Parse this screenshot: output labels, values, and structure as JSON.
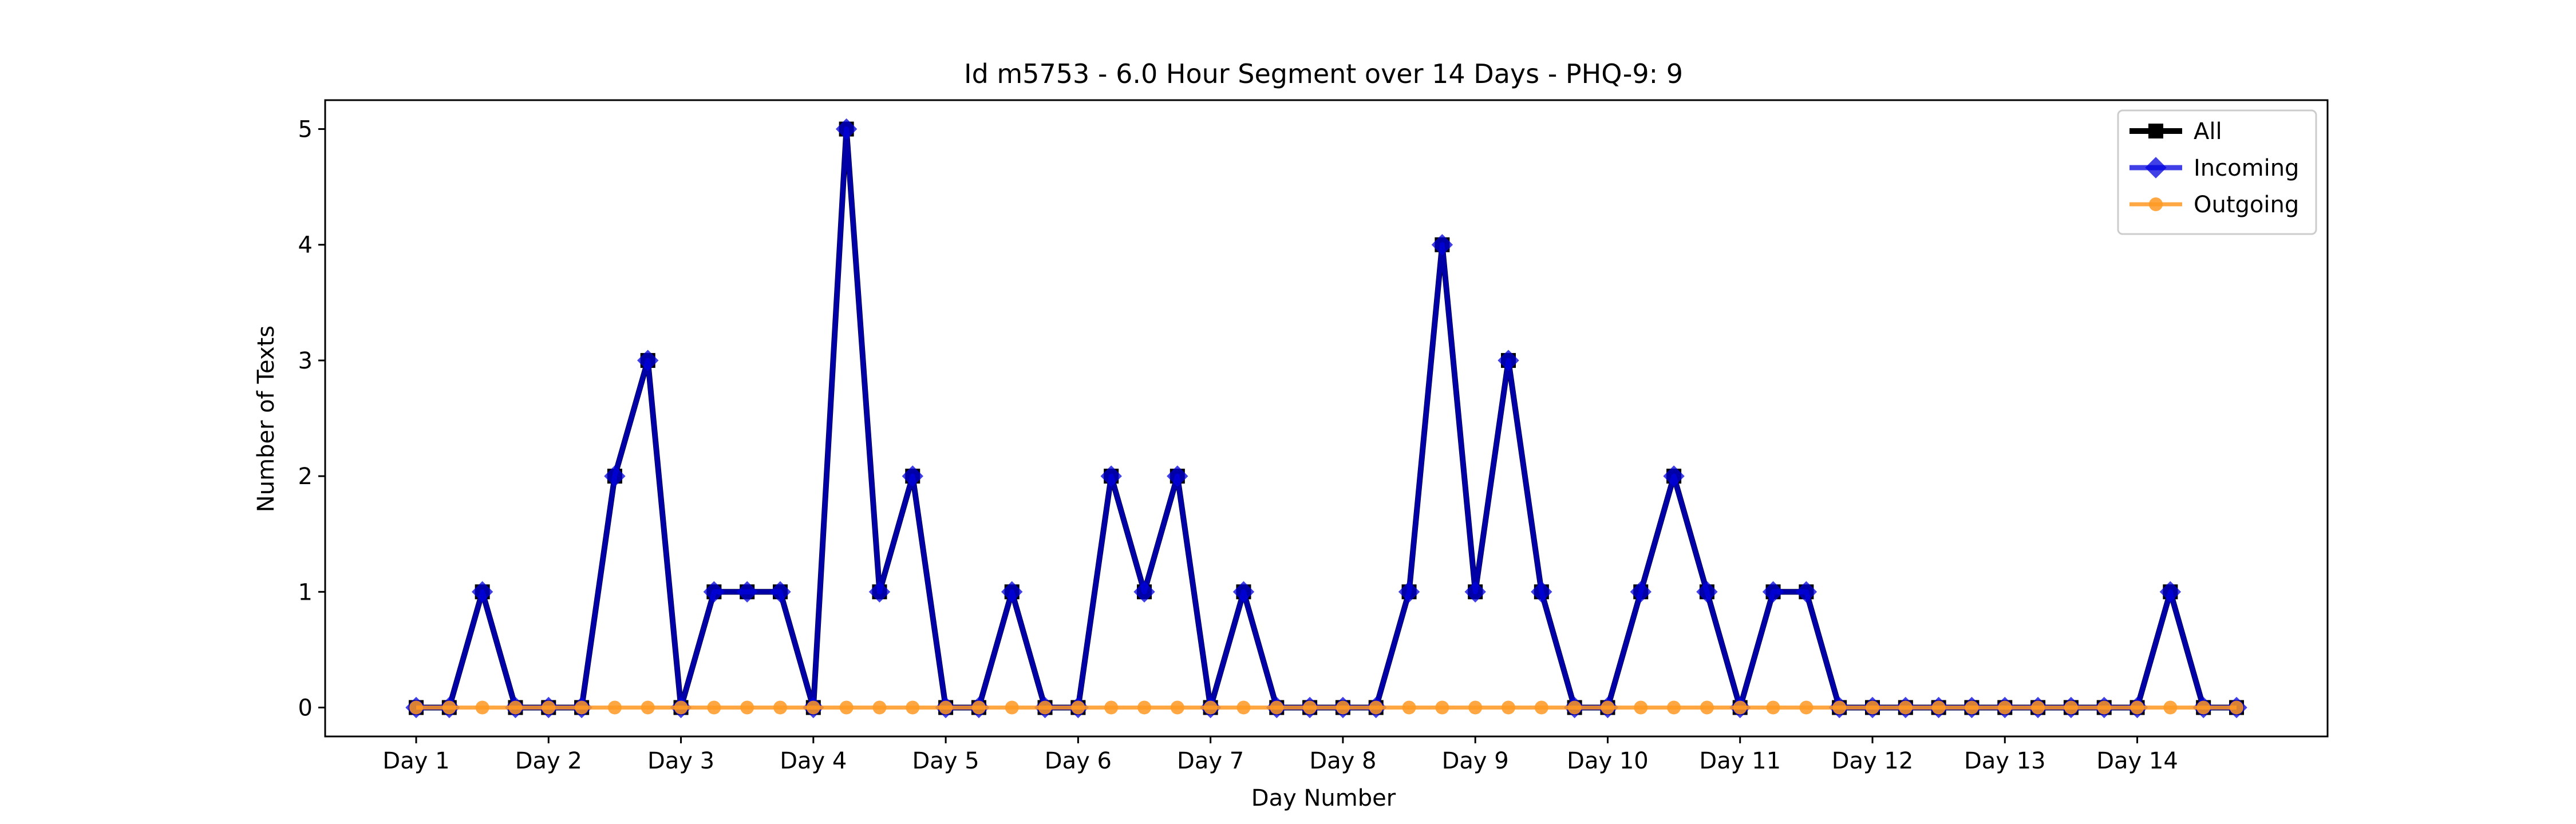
{
  "chart_data": {
    "type": "line",
    "title": "Id m5753 - 6.0 Hour Segment over 14 Days - PHQ-9: 9",
    "xlabel": "Day Number",
    "ylabel": "Number of Texts",
    "ylim": [
      -0.25,
      5.25
    ],
    "yticks": [
      0,
      1,
      2,
      3,
      4,
      5
    ],
    "xticks": [
      "Day 1",
      "Day 2",
      "Day 3",
      "Day 4",
      "Day 5",
      "Day 6",
      "Day 7",
      "Day 8",
      "Day 9",
      "Day 10",
      "Day 11",
      "Day 12",
      "Day 13",
      "Day 14"
    ],
    "points_per_day": 4,
    "grid": false,
    "legend_position": "top-right",
    "series": [
      {
        "name": "All",
        "color": "#000000",
        "marker": "square",
        "values": [
          0,
          0,
          1,
          0,
          0,
          0,
          2,
          3,
          0,
          1,
          1,
          1,
          0,
          5,
          1,
          2,
          0,
          0,
          1,
          0,
          0,
          2,
          1,
          2,
          0,
          1,
          0,
          0,
          0,
          0,
          1,
          4,
          1,
          3,
          1,
          0,
          0,
          1,
          2,
          1,
          0,
          1,
          1,
          0,
          0,
          0,
          0,
          0,
          0,
          0,
          0,
          0,
          0,
          1,
          0,
          0
        ]
      },
      {
        "name": "Incoming",
        "color": "#0000dd",
        "marker": "diamond",
        "values": [
          0,
          0,
          1,
          0,
          0,
          0,
          2,
          3,
          0,
          1,
          1,
          1,
          0,
          5,
          1,
          2,
          0,
          0,
          1,
          0,
          0,
          2,
          1,
          2,
          0,
          1,
          0,
          0,
          0,
          0,
          1,
          4,
          1,
          3,
          1,
          0,
          0,
          1,
          2,
          1,
          0,
          1,
          1,
          0,
          0,
          0,
          0,
          0,
          0,
          0,
          0,
          0,
          0,
          1,
          0,
          0
        ]
      },
      {
        "name": "Outgoing",
        "color": "#ff9922",
        "marker": "circle",
        "values": [
          0,
          0,
          0,
          0,
          0,
          0,
          0,
          0,
          0,
          0,
          0,
          0,
          0,
          0,
          0,
          0,
          0,
          0,
          0,
          0,
          0,
          0,
          0,
          0,
          0,
          0,
          0,
          0,
          0,
          0,
          0,
          0,
          0,
          0,
          0,
          0,
          0,
          0,
          0,
          0,
          0,
          0,
          0,
          0,
          0,
          0,
          0,
          0,
          0,
          0,
          0,
          0,
          0,
          0,
          0,
          0
        ]
      }
    ]
  }
}
